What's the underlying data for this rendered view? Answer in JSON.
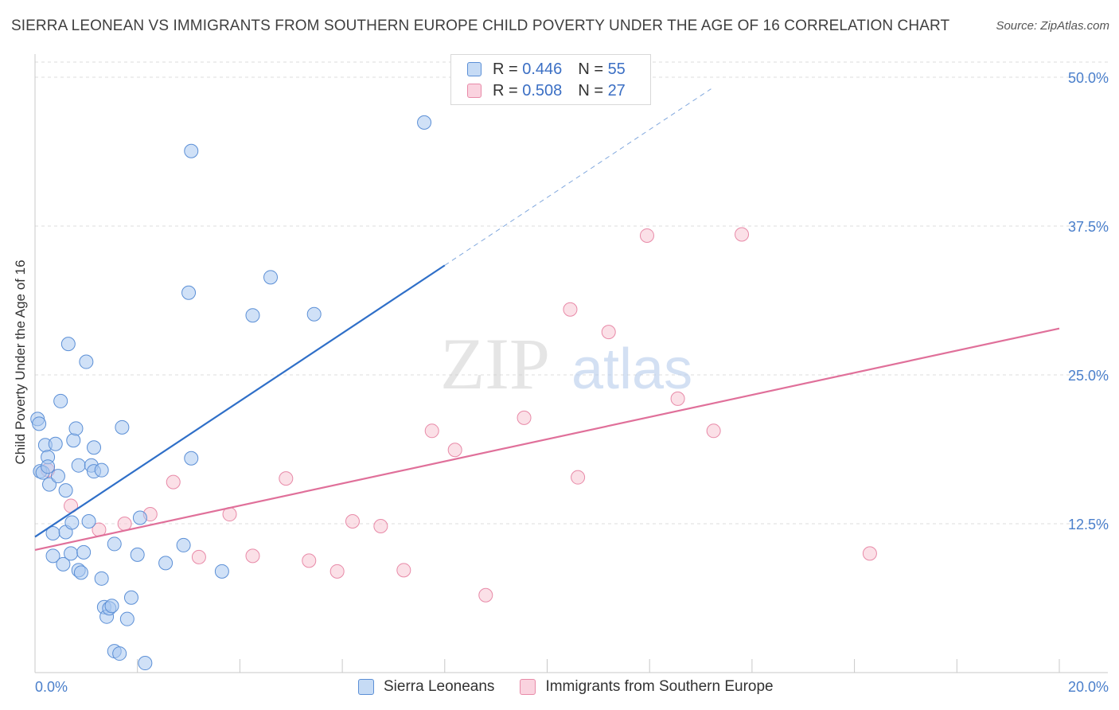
{
  "header": {
    "title": "SIERRA LEONEAN VS IMMIGRANTS FROM SOUTHERN EUROPE CHILD POVERTY UNDER THE AGE OF 16 CORRELATION CHART",
    "source": "Source: ZipAtlas.com"
  },
  "watermark": {
    "zip": "ZIP",
    "atlas": "atlas"
  },
  "legend": {
    "r_label": "R =",
    "n_label": "N =",
    "rows": [
      {
        "r": "0.446",
        "n": "55",
        "color": "#a9c8f0"
      },
      {
        "r": "0.508",
        "n": "27",
        "color": "#f7bfd0"
      }
    ]
  },
  "bottom_legend": {
    "items": [
      {
        "label": "Sierra Leoneans",
        "color": "#a9c8f0"
      },
      {
        "label": "Immigrants from Southern Europe",
        "color": "#f7bfd0"
      }
    ]
  },
  "colors": {
    "blue_fill": "#a9c8f0",
    "blue_stroke": "#5b8fd6",
    "blue_line": "#2f6fc8",
    "pink_fill": "#f7c6d4",
    "pink_stroke": "#e88aa8",
    "pink_line": "#e0709a",
    "grid": "#dcdcdc",
    "axis_text": "#4a7fcb"
  },
  "chart_data": {
    "type": "scatter",
    "title": "SIERRA LEONEAN VS IMMIGRANTS FROM SOUTHERN EUROPE CHILD POVERTY UNDER THE AGE OF 16 CORRELATION CHART",
    "xlabel": "",
    "ylabel": "Child Poverty Under the Age of 16",
    "xlim": [
      0,
      20
    ],
    "ylim": [
      0,
      50
    ],
    "x_tick_labels": [
      "0.0%",
      "20.0%"
    ],
    "y_ticks": [
      12.5,
      25.0,
      37.5,
      50.0
    ],
    "y_tick_labels": [
      "12.5%",
      "25.0%",
      "37.5%",
      "50.0%"
    ],
    "grid": true,
    "legend_position": "top-center",
    "series": [
      {
        "name": "Sierra Leoneans",
        "r": 0.446,
        "n": 55,
        "points": [
          [
            0.05,
            21.3
          ],
          [
            0.08,
            20.9
          ],
          [
            0.1,
            16.9
          ],
          [
            0.15,
            16.8
          ],
          [
            0.2,
            19.1
          ],
          [
            0.25,
            18.1
          ],
          [
            0.25,
            17.3
          ],
          [
            0.28,
            15.8
          ],
          [
            0.35,
            11.7
          ],
          [
            0.35,
            9.8
          ],
          [
            0.4,
            19.2
          ],
          [
            0.45,
            16.5
          ],
          [
            0.5,
            22.8
          ],
          [
            0.55,
            9.1
          ],
          [
            0.6,
            15.3
          ],
          [
            0.6,
            11.8
          ],
          [
            0.65,
            27.6
          ],
          [
            0.7,
            10.0
          ],
          [
            0.72,
            12.6
          ],
          [
            0.75,
            19.5
          ],
          [
            0.8,
            20.5
          ],
          [
            0.85,
            8.6
          ],
          [
            0.85,
            17.4
          ],
          [
            0.9,
            8.4
          ],
          [
            0.95,
            10.1
          ],
          [
            1.0,
            26.1
          ],
          [
            1.05,
            12.7
          ],
          [
            1.1,
            17.4
          ],
          [
            1.15,
            16.9
          ],
          [
            1.15,
            18.9
          ],
          [
            1.3,
            17.0
          ],
          [
            1.3,
            7.9
          ],
          [
            1.35,
            5.5
          ],
          [
            1.4,
            4.7
          ],
          [
            1.45,
            5.4
          ],
          [
            1.5,
            5.6
          ],
          [
            1.55,
            10.8
          ],
          [
            1.55,
            1.8
          ],
          [
            1.65,
            1.6
          ],
          [
            1.7,
            20.6
          ],
          [
            1.8,
            4.5
          ],
          [
            1.88,
            6.3
          ],
          [
            2.0,
            9.9
          ],
          [
            2.05,
            13.0
          ],
          [
            2.15,
            0.8
          ],
          [
            2.55,
            9.2
          ],
          [
            2.9,
            10.7
          ],
          [
            3.0,
            31.9
          ],
          [
            3.05,
            43.8
          ],
          [
            3.05,
            18.0
          ],
          [
            3.65,
            8.5
          ],
          [
            4.25,
            30.0
          ],
          [
            4.6,
            33.2
          ],
          [
            5.45,
            30.1
          ],
          [
            7.6,
            46.2
          ]
        ]
      },
      {
        "name": "Immigrants from Southern Europe",
        "r": 0.508,
        "n": 27,
        "points": [
          [
            0.25,
            17.0
          ],
          [
            0.7,
            14.0
          ],
          [
            1.25,
            12.0
          ],
          [
            1.75,
            12.5
          ],
          [
            2.25,
            13.3
          ],
          [
            2.7,
            16.0
          ],
          [
            3.2,
            9.7
          ],
          [
            3.8,
            13.3
          ],
          [
            4.25,
            9.8
          ],
          [
            4.9,
            16.3
          ],
          [
            5.35,
            9.4
          ],
          [
            5.9,
            8.5
          ],
          [
            6.2,
            12.7
          ],
          [
            6.75,
            12.3
          ],
          [
            7.2,
            8.6
          ],
          [
            7.75,
            20.3
          ],
          [
            8.2,
            18.7
          ],
          [
            8.8,
            6.5
          ],
          [
            9.55,
            21.4
          ],
          [
            10.45,
            30.5
          ],
          [
            10.6,
            16.4
          ],
          [
            11.2,
            28.6
          ],
          [
            11.95,
            36.7
          ],
          [
            12.55,
            23.0
          ],
          [
            13.25,
            20.3
          ],
          [
            13.8,
            36.8
          ],
          [
            16.3,
            10.0
          ]
        ]
      }
    ],
    "trend_lines": [
      {
        "series": "Sierra Leoneans",
        "y_at_x0": 11.4,
        "slope": 2.85,
        "solid_to_x": 8.0,
        "dashed_to_x": 13.2
      },
      {
        "series": "Immigrants from Southern Europe",
        "y_at_x0": 10.3,
        "slope": 0.93,
        "solid_to_x": 20.0
      }
    ]
  }
}
